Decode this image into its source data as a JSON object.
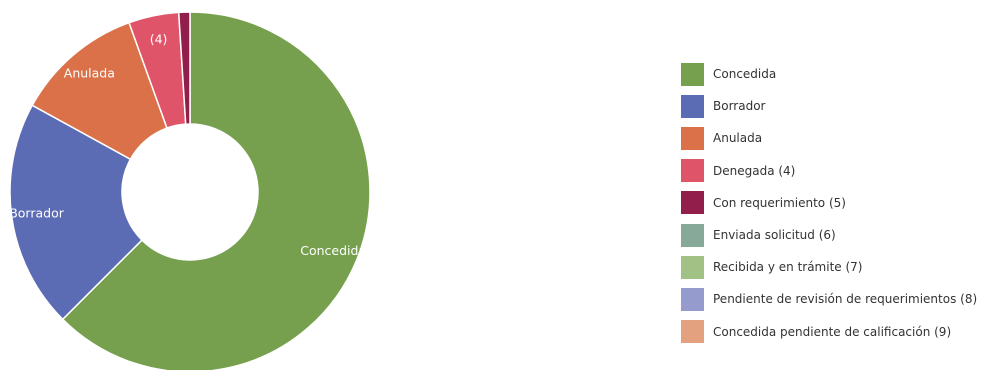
{
  "chart_data": {
    "type": "pie",
    "donut": true,
    "legend_position": "right",
    "slices": [
      {
        "label": "Concedida",
        "value": 62.5,
        "color": "#76a04d",
        "slice_label": "Concedida"
      },
      {
        "label": "Borrador",
        "value": 20.5,
        "color": "#5b6bb4",
        "slice_label": "Borrador"
      },
      {
        "label": "Anulada",
        "value": 11.5,
        "color": "#db7149",
        "slice_label": "Anulada"
      },
      {
        "label": "Denegada (4)",
        "value": 4.5,
        "color": "#df5468",
        "slice_label": "(4)"
      },
      {
        "label": "Con requerimiento (5)",
        "value": 1.0,
        "color": "#911e4b",
        "slice_label": ""
      }
    ],
    "legend": [
      {
        "label": "Concedida",
        "color": "#76a04d"
      },
      {
        "label": "Borrador",
        "color": "#5b6bb4"
      },
      {
        "label": "Anulada",
        "color": "#db7149"
      },
      {
        "label": "Denegada (4)",
        "color": "#df5468"
      },
      {
        "label": "Con requerimiento (5)",
        "color": "#911e4b"
      },
      {
        "label": "Enviada solicitud (6)",
        "color": "#87a99a"
      },
      {
        "label": "Recibida y en trámite (7)",
        "color": "#a2c184"
      },
      {
        "label": "Pendiente de revisión de requerimientos (8)",
        "color": "#959bcd"
      },
      {
        "label": "Concedida pendiente de calificación (9)",
        "color": "#e4a17f"
      }
    ]
  }
}
